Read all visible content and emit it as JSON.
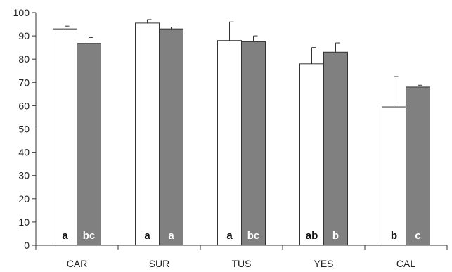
{
  "chart_data": {
    "type": "bar",
    "title": "",
    "xlabel": "",
    "ylabel": "",
    "ylim": [
      0,
      100
    ],
    "yticks": [
      0,
      10,
      20,
      30,
      40,
      50,
      60,
      70,
      80,
      90,
      100
    ],
    "grid": false,
    "categories": [
      "CAR",
      "SUR",
      "TUS",
      "YES",
      "CAL"
    ],
    "series": [
      {
        "color": "#ffffff",
        "values": [
          93,
          95.5,
          88,
          78,
          59.5
        ],
        "errors": [
          1.2,
          1.5,
          8,
          7,
          13
        ],
        "letters": [
          "a",
          "a",
          "a",
          "ab",
          "b"
        ]
      },
      {
        "color": "#808080",
        "values": [
          86.8,
          93,
          87.5,
          83,
          68
        ],
        "errors": [
          2.5,
          0.8,
          2.5,
          4,
          0.8
        ],
        "letters": [
          "bc",
          "a",
          "bc",
          "b",
          "c"
        ]
      }
    ]
  }
}
